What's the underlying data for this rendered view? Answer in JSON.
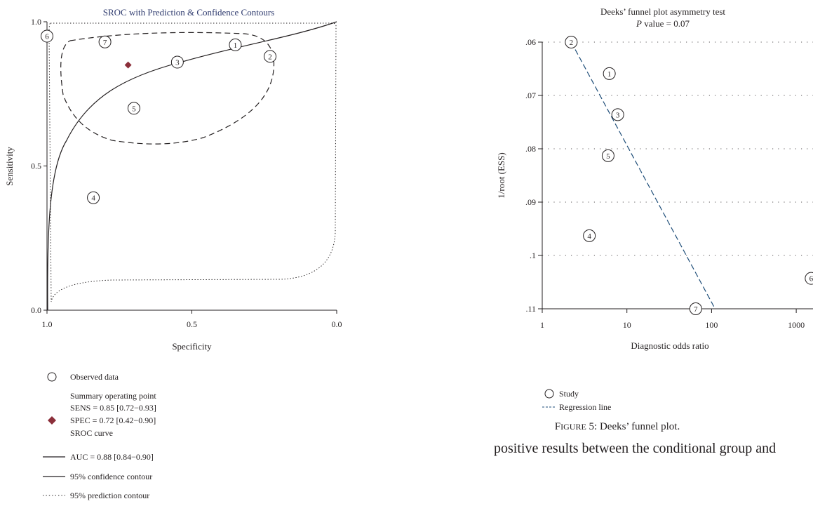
{
  "chart_data": [
    {
      "type": "scatter",
      "title": "SROC with Prediction & Confidence Contours",
      "xlabel": "Specificity",
      "ylabel": "Sensitivity",
      "xlim": [
        1.0,
        0.0
      ],
      "ylim": [
        0.0,
        1.0
      ],
      "x_ticks": [
        "1.0",
        "0.5",
        "0.0"
      ],
      "y_ticks": [
        "0.0",
        "0.5",
        "1.0"
      ],
      "grid": false,
      "points": [
        {
          "label": "1",
          "specificity": 0.35,
          "sensitivity": 0.92
        },
        {
          "label": "2",
          "specificity": 0.23,
          "sensitivity": 0.88
        },
        {
          "label": "3",
          "specificity": 0.55,
          "sensitivity": 0.86
        },
        {
          "label": "4",
          "specificity": 0.84,
          "sensitivity": 0.39
        },
        {
          "label": "5",
          "specificity": 0.7,
          "sensitivity": 0.7
        },
        {
          "label": "6",
          "specificity": 1.0,
          "sensitivity": 0.95
        },
        {
          "label": "7",
          "specificity": 0.8,
          "sensitivity": 0.93
        }
      ],
      "summary_point": {
        "specificity": 0.72,
        "sensitivity": 0.85,
        "color": "#8b2f3a"
      },
      "legend": {
        "placement": "bottom-left",
        "observed": "Observed data",
        "summary_title": "Summary operating point",
        "sens": "SENS = 0.85 [0.72−0.93]",
        "spec": "SPEC = 0.72 [0.42−0.90]",
        "sroc": "SROC curve",
        "auc": "AUC = 0.88 [0.84−0.90]",
        "confidence": "95% confidence contour",
        "prediction": "95% prediction contour"
      }
    },
    {
      "type": "scatter",
      "title": "Deeks’ funnel plot asymmetry test",
      "subtitle_italic": "P",
      "subtitle_rest": " value = 0.07",
      "xlabel": "Diagnostic odds ratio",
      "ylabel": "1/root (ESS)",
      "x_scale": "log",
      "x_ticks": [
        "1",
        "10",
        "100",
        "1000"
      ],
      "y_ticks": [
        ".06",
        ".07",
        ".08",
        ".09",
        ".1",
        ".11"
      ],
      "ylim": [
        0.06,
        0.11
      ],
      "y_inverted": true,
      "grid": true,
      "points": [
        {
          "label": "1",
          "dor": 6.2,
          "inv_root_ess": 0.0659
        },
        {
          "label": "2",
          "dor": 2.2,
          "inv_root_ess": 0.06
        },
        {
          "label": "3",
          "dor": 7.8,
          "inv_root_ess": 0.0736
        },
        {
          "label": "4",
          "dor": 3.6,
          "inv_root_ess": 0.0963
        },
        {
          "label": "5",
          "dor": 6.0,
          "inv_root_ess": 0.0813
        },
        {
          "label": "6",
          "dor": 1500,
          "inv_root_ess": 0.1043
        },
        {
          "label": "7",
          "dor": 65,
          "inv_root_ess": 0.11
        }
      ],
      "regression_line": {
        "from": {
          "dor": 2.2,
          "inv_root_ess": 0.06
        },
        "to": {
          "dor": 110,
          "inv_root_ess": 0.11
        },
        "color": "#1f4e79"
      },
      "legend": {
        "placement": "bottom-left",
        "study": "Study",
        "regression": "Regression line"
      },
      "caption_prefix": "F",
      "caption_smallcaps": "IGURE",
      "caption_rest": " 5: Deeks’ funnel plot."
    }
  ],
  "body_text": "positive results between the conditional group and"
}
